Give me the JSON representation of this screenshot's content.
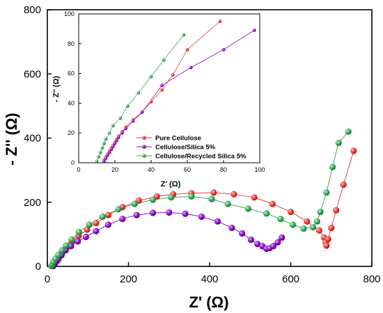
{
  "chart_data": [
    {
      "type": "scatter",
      "title": "",
      "xlabel": "Z' (Ω)",
      "ylabel": "- Z'' (Ω)",
      "xlim": [
        0,
        800
      ],
      "ylim": [
        0,
        800
      ],
      "xticks": [
        "0",
        "200",
        "400",
        "600",
        "800"
      ],
      "yticks": [
        "0",
        "200",
        "400",
        "600",
        "800"
      ],
      "grid": false,
      "series": [
        {
          "name": "Pure Cellulose",
          "color": "#e8403a",
          "points": [
            [
              14,
              2
            ],
            [
              18,
              8
            ],
            [
              23,
              16
            ],
            [
              30,
              30
            ],
            [
              38,
              45
            ],
            [
              48,
              60
            ],
            [
              60,
              77
            ],
            [
              77,
              95
            ],
            [
              98,
              115
            ],
            [
              120,
              135
            ],
            [
              150,
              160
            ],
            [
              185,
              185
            ],
            [
              225,
              205
            ],
            [
              270,
              218
            ],
            [
              310,
              225
            ],
            [
              355,
              228
            ],
            [
              410,
              230
            ],
            [
              460,
              225
            ],
            [
              510,
              215
            ],
            [
              555,
              195
            ],
            [
              600,
              170
            ],
            [
              640,
              140
            ],
            [
              670,
              112
            ],
            [
              682,
              90
            ],
            [
              686,
              75
            ],
            [
              688,
              65
            ],
            [
              692,
              85
            ],
            [
              700,
              120
            ],
            [
              712,
              175
            ],
            [
              730,
              255
            ],
            [
              755,
              360
            ]
          ]
        },
        {
          "name": "Cellulose/Silica 5%",
          "color": "#8b10c8",
          "points": [
            [
              14,
              1
            ],
            [
              17,
              6
            ],
            [
              21,
              13
            ],
            [
              27,
              22
            ],
            [
              35,
              35
            ],
            [
              45,
              50
            ],
            [
              58,
              63
            ],
            [
              75,
              78
            ],
            [
              95,
              92
            ],
            [
              120,
              110
            ],
            [
              150,
              130
            ],
            [
              185,
              148
            ],
            [
              220,
              160
            ],
            [
              260,
              167
            ],
            [
              300,
              168
            ],
            [
              340,
              164
            ],
            [
              380,
              155
            ],
            [
              420,
              140
            ],
            [
              455,
              120
            ],
            [
              480,
              103
            ],
            [
              502,
              83
            ],
            [
              518,
              70
            ],
            [
              530,
              63
            ],
            [
              540,
              55
            ],
            [
              548,
              57
            ],
            [
              557,
              63
            ],
            [
              568,
              75
            ],
            [
              578,
              90
            ]
          ]
        },
        {
          "name": "Cellulose/Recycled Silica 5%",
          "color": "#3aaa5c",
          "points": [
            [
              10,
              1
            ],
            [
              12,
              6
            ],
            [
              15,
              14
            ],
            [
              20,
              24
            ],
            [
              27,
              36
            ],
            [
              36,
              50
            ],
            [
              46,
              65
            ],
            [
              60,
              84
            ],
            [
              78,
              107
            ],
            [
              103,
              130
            ],
            [
              136,
              155
            ],
            [
              175,
              178
            ],
            [
              215,
              195
            ],
            [
              260,
              208
            ],
            [
              305,
              215
            ],
            [
              355,
              218
            ],
            [
              405,
              210
            ],
            [
              445,
              195
            ],
            [
              495,
              180
            ],
            [
              540,
              165
            ],
            [
              575,
              148
            ],
            [
              605,
              130
            ],
            [
              632,
              118
            ],
            [
              655,
              122
            ],
            [
              665,
              140
            ],
            [
              673,
              170
            ],
            [
              688,
              230
            ],
            [
              703,
              310
            ],
            [
              718,
              385
            ],
            [
              742,
              420
            ]
          ]
        }
      ]
    },
    {
      "type": "scatter",
      "title": "",
      "xlabel": "Z' (Ω)",
      "ylabel": "- Z'' (Ω)",
      "xlim": [
        0,
        100
      ],
      "ylim": [
        0,
        100
      ],
      "xticks": [
        "0",
        "20",
        "40",
        "60",
        "80",
        "100"
      ],
      "yticks": [
        "0",
        "20",
        "40",
        "60",
        "80",
        "100"
      ],
      "legend_position": "lower-right",
      "series": [
        {
          "name": "Pure Cellulose",
          "color": "#e8403a",
          "points": [
            [
              14,
              2
            ],
            [
              15,
              4
            ],
            [
              16,
              6
            ],
            [
              17,
              8
            ],
            [
              18,
              10
            ],
            [
              19,
              12
            ],
            [
              20,
              14
            ],
            [
              21,
              16
            ],
            [
              22,
              18
            ],
            [
              24,
              21
            ],
            [
              26,
              24
            ],
            [
              30,
              29
            ],
            [
              35,
              34
            ],
            [
              40,
              41
            ],
            [
              46,
              49
            ],
            [
              52,
              59
            ],
            [
              60,
              76
            ],
            [
              78,
              95
            ]
          ]
        },
        {
          "name": "Cellulose/Silica 5%",
          "color": "#8b10c8",
          "points": [
            [
              14,
              1
            ],
            [
              15,
              3
            ],
            [
              16,
              5
            ],
            [
              17,
              7
            ],
            [
              18,
              9
            ],
            [
              19,
              11
            ],
            [
              20,
              13
            ],
            [
              21,
              15
            ],
            [
              22,
              17
            ],
            [
              24,
              20
            ],
            [
              26,
              23
            ],
            [
              30,
              28
            ],
            [
              35,
              34
            ],
            [
              46,
              52
            ],
            [
              62,
              64
            ],
            [
              80,
              76
            ],
            [
              97,
              89
            ]
          ]
        },
        {
          "name": "Cellulose/Recycled Silica 5%",
          "color": "#3aaa5c",
          "points": [
            [
              10,
              1
            ],
            [
              11,
              4
            ],
            [
              12,
              7
            ],
            [
              13,
              10
            ],
            [
              14,
              13
            ],
            [
              15,
              16
            ],
            [
              17,
              20
            ],
            [
              19,
              25
            ],
            [
              23,
              30
            ],
            [
              27,
              38
            ],
            [
              33,
              47
            ],
            [
              40,
              58
            ],
            [
              47,
              69
            ],
            [
              58,
              86
            ]
          ]
        }
      ]
    }
  ]
}
